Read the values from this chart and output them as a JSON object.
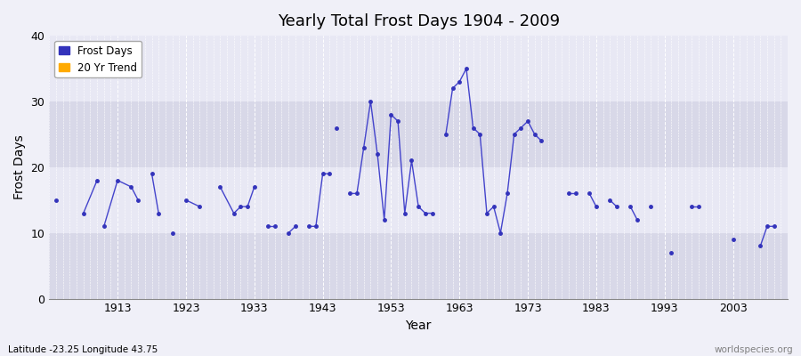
{
  "title": "Yearly Total Frost Days 1904 - 2009",
  "xlabel": "Year",
  "ylabel": "Frost Days",
  "footer_left": "Latitude -23.25 Longitude 43.75",
  "footer_right": "worldspecies.org",
  "legend_labels": [
    "Frost Days",
    "20 Yr Trend"
  ],
  "legend_colors": [
    "#3333bb",
    "#ffaa00"
  ],
  "line_color": "#4444cc",
  "marker_color": "#3333bb",
  "bg_color": "#f0f0f8",
  "plot_bg_color": "#e0e0ec",
  "band_color1": "#d8d8e8",
  "band_color2": "#e8e8f4",
  "ylim": [
    0,
    40
  ],
  "xlim": [
    1903,
    2011
  ],
  "yticks": [
    0,
    10,
    20,
    30,
    40
  ],
  "xticks": [
    1913,
    1923,
    1933,
    1943,
    1953,
    1963,
    1973,
    1983,
    1993,
    2003
  ],
  "segments": [
    {
      "years": [
        1904
      ],
      "values": [
        15
      ]
    },
    {
      "years": [
        1908,
        1910
      ],
      "values": [
        13,
        18
      ]
    },
    {
      "years": [
        1911,
        1913,
        1915,
        1916
      ],
      "values": [
        11,
        18,
        17,
        15
      ]
    },
    {
      "years": [
        1918,
        1919
      ],
      "values": [
        19,
        13
      ]
    },
    {
      "years": [
        1921
      ],
      "values": [
        10
      ]
    },
    {
      "years": [
        1923,
        1925
      ],
      "values": [
        15,
        14
      ]
    },
    {
      "years": [
        1928,
        1930,
        1931,
        1932,
        1933
      ],
      "values": [
        17,
        13,
        14,
        14,
        17
      ]
    },
    {
      "years": [
        1935,
        1936
      ],
      "values": [
        11,
        11
      ]
    },
    {
      "years": [
        1938,
        1939
      ],
      "values": [
        10,
        11
      ]
    },
    {
      "years": [
        1941,
        1942,
        1943,
        1944
      ],
      "values": [
        11,
        11,
        19,
        19
      ]
    },
    {
      "years": [
        1945
      ],
      "values": [
        26
      ]
    },
    {
      "years": [
        1947,
        1948,
        1949,
        1950,
        1951,
        1952,
        1953,
        1954,
        1955,
        1956,
        1957,
        1958,
        1959
      ],
      "values": [
        16,
        16,
        23,
        30,
        22,
        12,
        28,
        27,
        13,
        21,
        14,
        13,
        13
      ]
    },
    {
      "years": [
        1961,
        1962,
        1963,
        1964,
        1965,
        1966,
        1967,
        1968,
        1969,
        1970,
        1971,
        1972,
        1973,
        1974,
        1975
      ],
      "values": [
        25,
        32,
        33,
        35,
        26,
        25,
        13,
        14,
        10,
        16,
        25,
        26,
        27,
        25,
        24
      ]
    },
    {
      "years": [
        1979,
        1980
      ],
      "values": [
        16,
        16
      ]
    },
    {
      "years": [
        1982,
        1983
      ],
      "values": [
        16,
        14
      ]
    },
    {
      "years": [
        1985,
        1986
      ],
      "values": [
        15,
        14
      ]
    },
    {
      "years": [
        1988,
        1989
      ],
      "values": [
        14,
        12
      ]
    },
    {
      "years": [
        1991
      ],
      "values": [
        14
      ]
    },
    {
      "years": [
        1994
      ],
      "values": [
        7
      ]
    },
    {
      "years": [
        1997,
        1998
      ],
      "values": [
        14,
        14
      ]
    },
    {
      "years": [
        2003
      ],
      "values": [
        9
      ]
    },
    {
      "years": [
        2007,
        2008,
        2009
      ],
      "values": [
        8,
        11,
        11
      ]
    }
  ]
}
